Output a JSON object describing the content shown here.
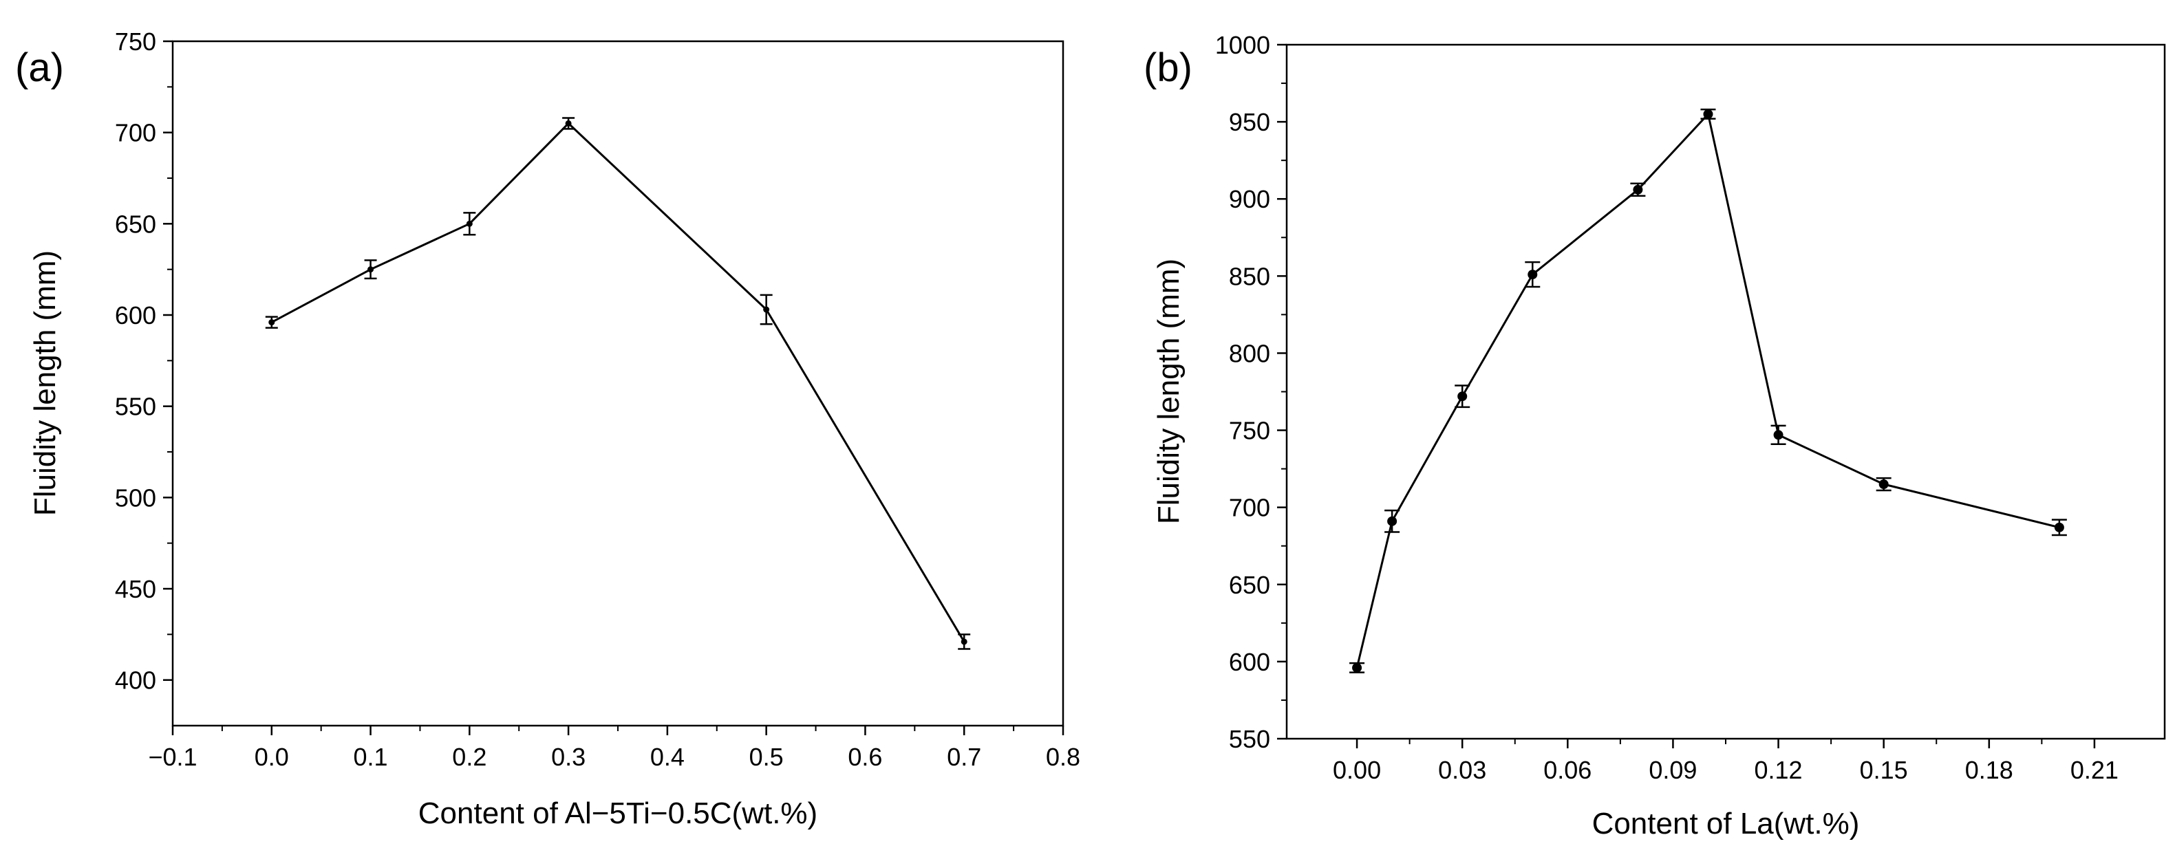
{
  "chart_data": [
    {
      "type": "line",
      "panel_label": "(a)",
      "title": "",
      "xlabel": "Content of Al−5Ti−0.5C(wt.%)",
      "ylabel": "Fluidity length (mm)",
      "xlim": [
        -0.1,
        0.8
      ],
      "ylim": [
        375,
        750
      ],
      "xticks": [
        -0.1,
        0.0,
        0.1,
        0.2,
        0.3,
        0.4,
        0.5,
        0.6,
        0.7,
        0.8
      ],
      "xtick_labels": [
        "−0.1",
        "0.0",
        "0.1",
        "0.2",
        "0.3",
        "0.4",
        "0.5",
        "0.6",
        "0.7",
        "0.8"
      ],
      "yticks": [
        400,
        450,
        500,
        550,
        600,
        650,
        700,
        750
      ],
      "ytick_labels": [
        "400",
        "450",
        "500",
        "550",
        "600",
        "650",
        "700",
        "750"
      ],
      "grid": false,
      "series": [
        {
          "name": "Al-5Ti-0.5C",
          "x": [
            0.0,
            0.1,
            0.2,
            0.3,
            0.5,
            0.7
          ],
          "y": [
            596,
            625,
            650,
            705,
            603,
            421
          ],
          "yerr": [
            3,
            5,
            6,
            3,
            8,
            4
          ]
        }
      ]
    },
    {
      "type": "line",
      "panel_label": "(b)",
      "title": "",
      "xlabel": "Content of La(wt.%)",
      "ylabel": "Fluidity length (mm)",
      "xlim": [
        -0.02,
        0.23
      ],
      "ylim": [
        550,
        1000
      ],
      "xticks": [
        0.0,
        0.03,
        0.06,
        0.09,
        0.12,
        0.15,
        0.18,
        0.21
      ],
      "xtick_labels": [
        "0.00",
        "0.03",
        "0.06",
        "0.09",
        "0.12",
        "0.15",
        "0.18",
        "0.21"
      ],
      "yticks": [
        550,
        600,
        650,
        700,
        750,
        800,
        850,
        900,
        950,
        1000
      ],
      "ytick_labels": [
        "550",
        "600",
        "650",
        "700",
        "750",
        "800",
        "850",
        "900",
        "950",
        "1000"
      ],
      "grid": false,
      "series": [
        {
          "name": "La",
          "x": [
            0.0,
            0.01,
            0.03,
            0.05,
            0.08,
            0.1,
            0.12,
            0.15,
            0.2
          ],
          "y": [
            596,
            691,
            772,
            851,
            906,
            955,
            747,
            715,
            687
          ],
          "yerr": [
            3,
            7,
            7,
            8,
            4,
            3,
            6,
            4,
            5
          ]
        }
      ]
    }
  ]
}
